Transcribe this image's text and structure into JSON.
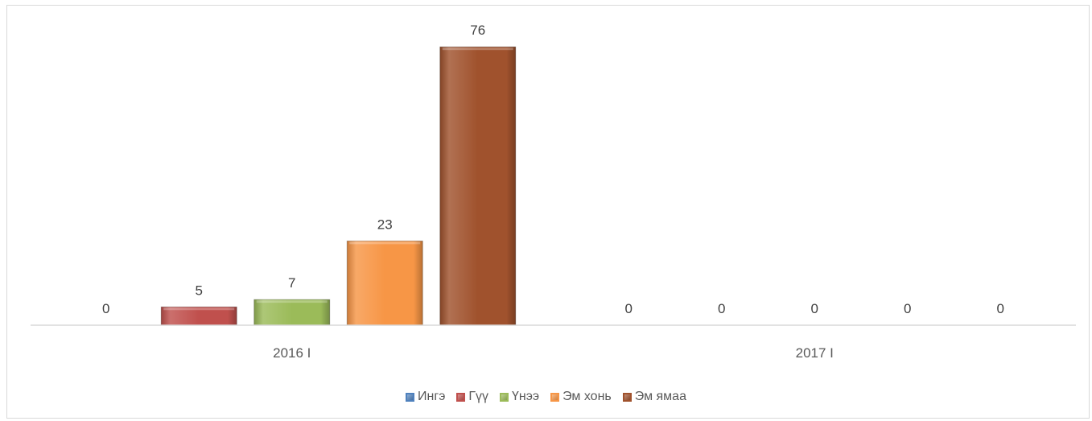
{
  "chart_data": {
    "type": "bar",
    "categories": [
      "2016 I",
      "2017 I"
    ],
    "series": [
      {
        "name": "Ингэ",
        "color": "#4f81bd",
        "values": [
          0,
          0
        ]
      },
      {
        "name": "Гүү",
        "color": "#c0504d",
        "values": [
          5,
          0
        ]
      },
      {
        "name": "Үнээ",
        "color": "#9bbb59",
        "values": [
          7,
          0
        ]
      },
      {
        "name": "Эм хонь",
        "color": "#f79646",
        "values": [
          23,
          0
        ]
      },
      {
        "name": "Эм ямаа",
        "color": "#a0522d",
        "values": [
          76,
          0
        ]
      }
    ],
    "title": "",
    "xlabel": "",
    "ylabel": "",
    "ylim": [
      0,
      80
    ],
    "grid": false,
    "legend_position": "bottom",
    "data_labels": true
  }
}
